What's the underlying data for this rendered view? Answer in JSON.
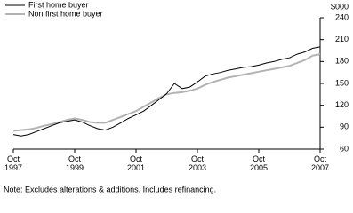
{
  "chart_data": {
    "type": "line",
    "y_axis_label": "$000",
    "note": "Note: Excludes alterations & additions. Includes refinancing.",
    "x": [
      "1997-10",
      "1998-01",
      "1998-04",
      "1998-07",
      "1998-10",
      "1999-01",
      "1999-04",
      "1999-07",
      "1999-10",
      "2000-01",
      "2000-04",
      "2000-07",
      "2000-10",
      "2001-01",
      "2001-04",
      "2001-07",
      "2001-10",
      "2002-01",
      "2002-04",
      "2002-07",
      "2002-10",
      "2003-01",
      "2003-04",
      "2003-07",
      "2003-10",
      "2004-01",
      "2004-04",
      "2004-07",
      "2004-10",
      "2005-01",
      "2005-04",
      "2005-07",
      "2005-10",
      "2006-01",
      "2006-04",
      "2006-07",
      "2006-10",
      "2007-01",
      "2007-04",
      "2007-07",
      "2007-10"
    ],
    "series": [
      {
        "name": "First home buyer",
        "color": "#000000",
        "values": [
          80,
          78,
          80,
          84,
          88,
          92,
          96,
          98,
          100,
          97,
          92,
          88,
          86,
          90,
          96,
          102,
          107,
          112,
          120,
          128,
          136,
          150,
          143,
          145,
          152,
          160,
          163,
          165,
          168,
          170,
          172,
          173,
          175,
          178,
          180,
          183,
          185,
          190,
          193,
          198,
          200
        ]
      },
      {
        "name": "Non first home buyer",
        "color": "#b3b3b3",
        "values": [
          85,
          86,
          87,
          89,
          92,
          94,
          97,
          100,
          102,
          100,
          97,
          96,
          96,
          100,
          104,
          108,
          112,
          118,
          124,
          130,
          135,
          137,
          138,
          140,
          143,
          148,
          152,
          155,
          158,
          160,
          162,
          164,
          166,
          168,
          170,
          172,
          174,
          178,
          182,
          188,
          190
        ]
      }
    ],
    "xlim": [
      "1997-10",
      "2007-10"
    ],
    "xticks": [
      {
        "value": "1997-10",
        "label": "Oct 1997"
      },
      {
        "value": "1999-10",
        "label": "Oct 1999"
      },
      {
        "value": "2001-10",
        "label": "Oct 2001"
      },
      {
        "value": "2003-10",
        "label": "Oct 2003"
      },
      {
        "value": "2005-10",
        "label": "Oct 2005"
      },
      {
        "value": "2007-10",
        "label": "Oct 2007"
      }
    ],
    "ylim": [
      60,
      240
    ],
    "yticks": [
      60,
      90,
      120,
      150,
      180,
      210,
      240
    ],
    "grid": false,
    "legend": "top-left"
  }
}
